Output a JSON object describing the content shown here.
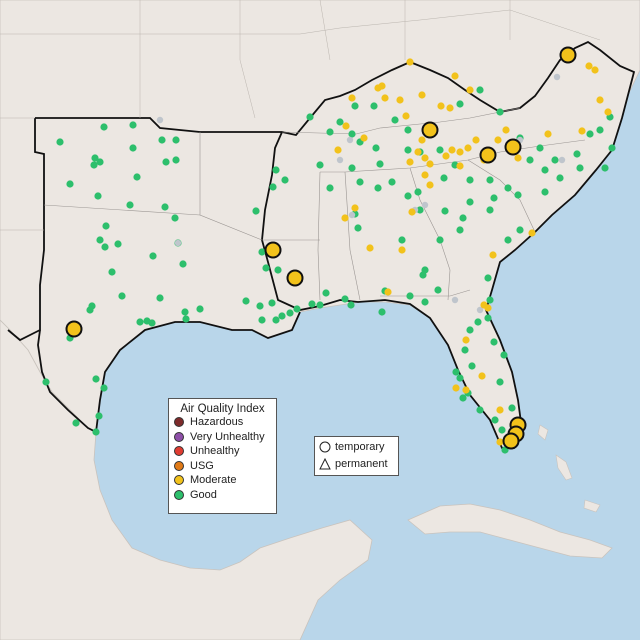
{
  "legend": {
    "title": "Air Quality Index",
    "items": [
      {
        "label": "Hazardous",
        "color": "#7e2b2b"
      },
      {
        "label": "Very Unhealthy",
        "color": "#8e4fa8"
      },
      {
        "label": "Unhealthy",
        "color": "#e03c31"
      },
      {
        "label": "USG",
        "color": "#e07a17"
      },
      {
        "label": "Moderate",
        "color": "#f2c21b"
      },
      {
        "label": "Good",
        "color": "#2dbf6c"
      }
    ]
  },
  "monitor_types": {
    "items": [
      {
        "label": "temporary",
        "shape": "circle"
      },
      {
        "label": "permanent",
        "shape": "triangle"
      }
    ]
  },
  "colors": {
    "ocean": "#b9d6ea",
    "land": "#ece7e2",
    "unmonitored": "#bfc5cc"
  }
}
